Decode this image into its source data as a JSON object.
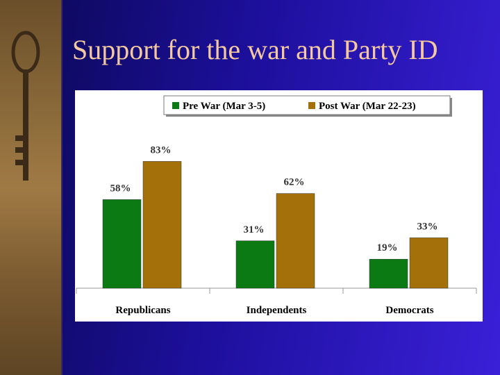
{
  "chart_data": {
    "type": "bar",
    "title": "Support for the war and Party ID",
    "categories": [
      "Republicans",
      "Independents",
      "Democrats"
    ],
    "series": [
      {
        "name": "Pre War (Mar 3-5)",
        "color": "#0b7a12",
        "values": [
          58,
          31,
          19
        ],
        "value_labels": [
          "58%",
          "31%",
          "19%"
        ]
      },
      {
        "name": "Post War (Mar 22-23)",
        "color": "#a3700a",
        "values": [
          83,
          62,
          33
        ],
        "value_labels": [
          "83%",
          "62%",
          "33%"
        ]
      }
    ],
    "ylim": [
      0,
      100
    ],
    "legend": "top"
  }
}
